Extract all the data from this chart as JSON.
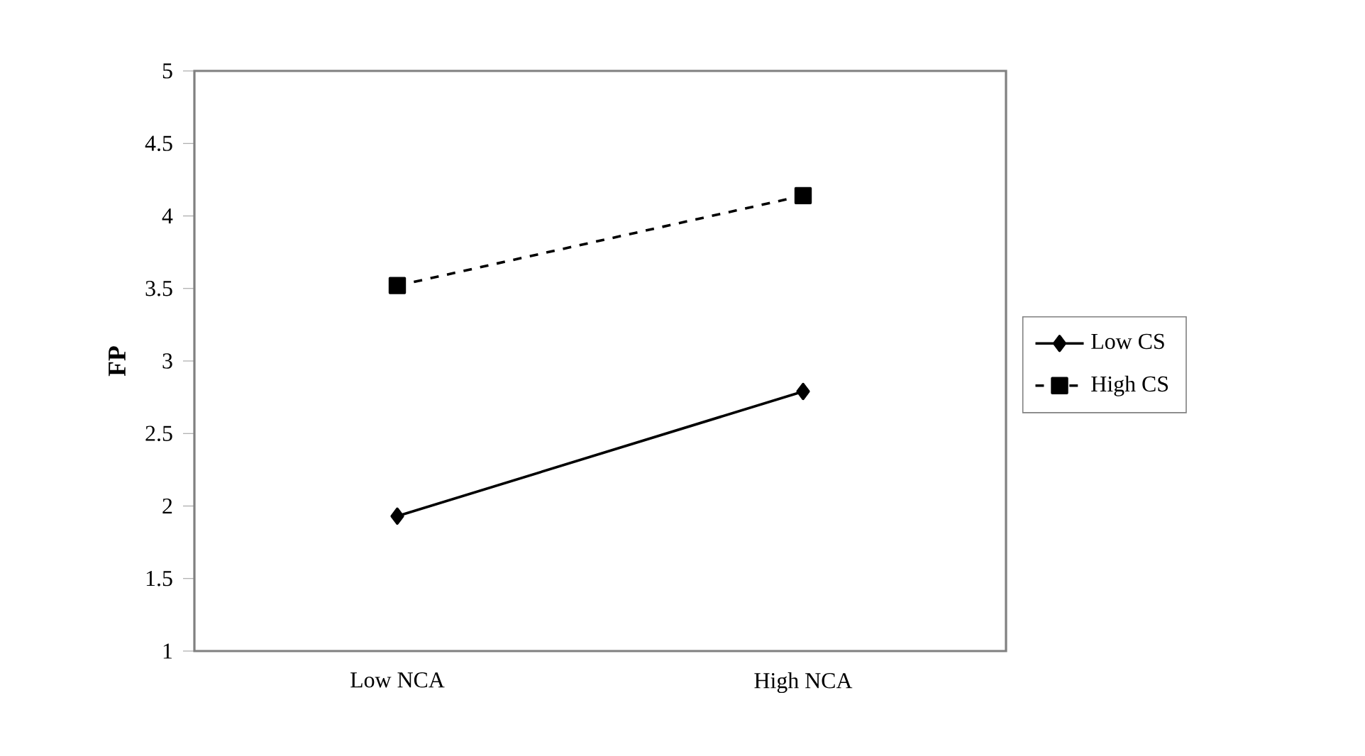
{
  "chart_data": {
    "type": "line",
    "ylabel": "**FP**",
    "categories": [
      "Low NCA",
      "High NCA"
    ],
    "series": [
      {
        "name": "Low CS",
        "color": "#000000",
        "values": [
          1.93,
          2.79
        ],
        "marker": "diamond",
        "line_style": "solid"
      },
      {
        "name": "High CS",
        "color": "#000000",
        "values": [
          3.52,
          4.14
        ],
        "marker": "square",
        "line_style": "dashed"
      }
    ],
    "ylim": [
      1,
      5
    ],
    "yticks": [
      1,
      1.5,
      2,
      2.5,
      3,
      3.5,
      4,
      4.5,
      5
    ],
    "grid": false,
    "legend": "right"
  }
}
